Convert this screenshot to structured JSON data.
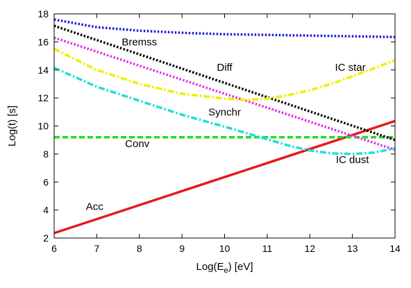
{
  "chart_data": {
    "type": "line",
    "xlabel": "Log(E",
    "xlabel_sub": "e",
    "xlabel_unit": ") [eV]",
    "ylabel": "Log(t) [s]",
    "xlim": [
      6,
      14
    ],
    "ylim": [
      2,
      18
    ],
    "grid": false,
    "legend": "none",
    "x_ticks": [
      6,
      7,
      8,
      9,
      10,
      11,
      12,
      13,
      14
    ],
    "y_ticks": [
      2,
      4,
      6,
      8,
      10,
      12,
      14,
      16,
      18
    ],
    "series": [
      {
        "name": "Acc",
        "color": "#e41a1c",
        "dash": "solid",
        "x": [
          6,
          14
        ],
        "y": [
          2.35,
          10.35
        ],
        "label_at": [
          6.95,
          4.0
        ]
      },
      {
        "name": "Conv",
        "color": "#22dd22",
        "dash": "dashed",
        "x": [
          6,
          14
        ],
        "y": [
          9.2,
          9.2
        ],
        "label_at": [
          7.95,
          8.5
        ]
      },
      {
        "name": "Bremss",
        "color": "#1a1adb",
        "dash": "dotted",
        "x": [
          6,
          7,
          8,
          9,
          10,
          11,
          12,
          13,
          14
        ],
        "y": [
          17.6,
          17.05,
          16.8,
          16.65,
          16.55,
          16.5,
          16.45,
          16.4,
          16.35
        ],
        "label_at": [
          8.0,
          15.75
        ]
      },
      {
        "name": "Diff",
        "color": "#000000",
        "dash": "dotted",
        "x": [
          6,
          14
        ],
        "y": [
          17.15,
          9.0
        ],
        "label_at": [
          10.0,
          13.95
        ]
      },
      {
        "name": "Synchr",
        "color": "#e030e0",
        "dash": "dotted",
        "x": [
          6,
          14
        ],
        "y": [
          16.3,
          8.3
        ],
        "label_at": [
          10.0,
          10.75
        ]
      },
      {
        "name": "IC star",
        "color": "#f0f000",
        "dash": "dashdot",
        "x": [
          6,
          7,
          8,
          9,
          10,
          10.5,
          11,
          11.5,
          12,
          12.5,
          13,
          13.5,
          14
        ],
        "y": [
          15.5,
          14.0,
          13.0,
          12.3,
          11.95,
          11.85,
          11.95,
          12.2,
          12.55,
          13.0,
          13.55,
          14.1,
          14.7
        ],
        "label_at": [
          12.95,
          13.95
        ]
      },
      {
        "name": "IC dust",
        "color": "#22dddd",
        "dash": "dashdot",
        "x": [
          6,
          7,
          8,
          9,
          10,
          11,
          11.5,
          12,
          12.5,
          13,
          13.5,
          14
        ],
        "y": [
          14.15,
          12.8,
          11.8,
          10.8,
          9.95,
          9.05,
          8.6,
          8.25,
          8.05,
          8.0,
          8.1,
          8.4
        ],
        "label_at": [
          13.0,
          7.35
        ]
      }
    ]
  }
}
